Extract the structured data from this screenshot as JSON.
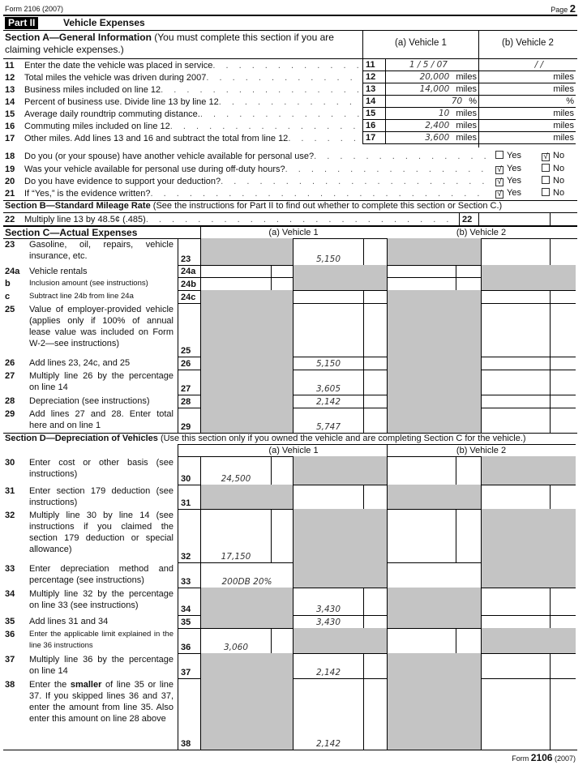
{
  "header": {
    "form_label": "Form 2106 (2007)",
    "page_label": "Page",
    "page_num": "2"
  },
  "part": {
    "badge": "Part II",
    "title": "Vehicle Expenses"
  },
  "sectionA": {
    "title_bold": "Section A—General Information",
    "title_rest": " (You must complete this section if you are claiming vehicle expenses.)",
    "col_a": "(a) Vehicle 1",
    "col_b": "(b) Vehicle 2",
    "lines": [
      {
        "num": "11",
        "text": "Enter the date the vehicle was placed in service",
        "v1": "1 /  5  / 07",
        "u1": "",
        "v2": "/        /",
        "u2": ""
      },
      {
        "num": "12",
        "text": "Total miles the vehicle was driven during 2007",
        "v1": "20,000",
        "u1": "miles",
        "v2": "",
        "u2": "miles"
      },
      {
        "num": "13",
        "text": "Business miles included on line 12",
        "v1": "14,000",
        "u1": "miles",
        "v2": "",
        "u2": "miles"
      },
      {
        "num": "14",
        "text": "Percent of business use. Divide line 13 by line 12",
        "v1": "70",
        "u1": "%",
        "v2": "",
        "u2": "%"
      },
      {
        "num": "15",
        "text": "Average daily roundtrip commuting distance.",
        "v1": "10",
        "u1": "miles",
        "v2": "",
        "u2": "miles"
      },
      {
        "num": "16",
        "text": "Commuting miles included on line 12",
        "v1": "2,400",
        "u1": "miles",
        "v2": "",
        "u2": "miles"
      },
      {
        "num": "17",
        "text": "Other miles. Add lines 13 and 16 and subtract the total from line 12",
        "v1": "3,600",
        "u1": "miles",
        "v2": "",
        "u2": "miles"
      }
    ],
    "yes_label": "Yes",
    "no_label": "No",
    "questions": [
      {
        "num": "18",
        "text": "Do you (or your spouse) have another vehicle available for personal use?",
        "yes": false,
        "no": true
      },
      {
        "num": "19",
        "text": "Was your vehicle available for personal use during off-duty hours?",
        "yes": true,
        "no": false
      },
      {
        "num": "20",
        "text": "Do you have evidence to support your deduction?",
        "yes": true,
        "no": false
      },
      {
        "num": "21",
        "text": "If “Yes,” is the evidence written?",
        "yes": true,
        "no": false
      }
    ]
  },
  "sectionB": {
    "title_bold": "Section B—Standard Mileage Rate",
    "title_rest": " (See the instructions for Part II to find out whether to complete this section or Section C.)",
    "line": {
      "num": "22",
      "text": "Multiply line 13 by 48.5¢ (.485)",
      "box": "22",
      "value": ""
    }
  },
  "sectionC": {
    "title": "Section C—Actual Expenses",
    "col_a": "(a) Vehicle 1",
    "col_b": "(b) Vehicle 2",
    "lines": [
      {
        "num": "23",
        "text": "Gasoline, oil, repairs, vehicle insurance, etc.",
        "box": "23",
        "v1": "5,150"
      },
      {
        "num": "24a",
        "text": "Vehicle rentals",
        "box": "24a",
        "v1": ""
      },
      {
        "num": "b",
        "text": "Inclusion amount (see instructions)",
        "box": "24b",
        "v1": ""
      },
      {
        "num": "c",
        "text": "Subtract line 24b from line 24a",
        "box": "24c",
        "v1": ""
      },
      {
        "num": "25",
        "text": "Value of employer-provided vehicle (applies only if 100% of annual lease value was included on Form W-2—see instructions)",
        "box": "25",
        "v1": ""
      },
      {
        "num": "26",
        "text": "Add lines 23, 24c, and 25",
        "box": "26",
        "v1": "5,150"
      },
      {
        "num": "27",
        "text": "Multiply line 26 by the percentage on line 14",
        "box": "27",
        "v1": "3,605"
      },
      {
        "num": "28",
        "text": "Depreciation (see instructions)",
        "box": "28",
        "v1": "2,142"
      },
      {
        "num": "29",
        "text": "Add lines 27 and 28. Enter total here and on line 1",
        "box": "29",
        "v1": "5,747"
      }
    ]
  },
  "sectionD": {
    "title_bold": "Section D—Depreciation of Vehicles",
    "title_rest": " (Use this section only if you owned the vehicle and are completing Section C for the vehicle.)",
    "col_a": "(a) Vehicle 1",
    "col_b": "(b) Vehicle 2",
    "lines": [
      {
        "num": "30",
        "text": "Enter cost or other basis (see instructions)",
        "box": "30",
        "v1": "24,500"
      },
      {
        "num": "31",
        "text": "Enter section 179 deduction (see instructions)",
        "box": "31",
        "v1": ""
      },
      {
        "num": "32",
        "text": "Multiply line 30 by line 14 (see instructions if you claimed the section 179 deduction or special allowance)",
        "box": "32",
        "v1": "17,150"
      },
      {
        "num": "33",
        "text": "Enter depreciation method and percentage (see instructions)",
        "box": "33",
        "v1": "200DB   20%"
      },
      {
        "num": "34",
        "text": "Multiply line 32 by the percentage on line 33 (see instructions)",
        "box": "34",
        "v1": "3,430"
      },
      {
        "num": "35",
        "text": "Add lines 31 and 34",
        "box": "35",
        "v1": "3,430"
      },
      {
        "num": "36",
        "text": "Enter the applicable limit explained in the line 36 instructions",
        "box": "36",
        "v1": "3,060"
      },
      {
        "num": "37",
        "text": "Multiply line 36 by the percentage on line 14",
        "box": "37",
        "v1": "2,142"
      },
      {
        "num": "38",
        "text_pre": "Enter the ",
        "text_bold": "smaller",
        "text": " of line 35 or line 37. If you skipped lines 36 and 37, enter the amount from line 35. Also enter this amount on line 28 above",
        "box": "38",
        "v1": "2,142"
      }
    ]
  },
  "footer": {
    "form": "Form",
    "number": "2106",
    "year": "(2007)"
  }
}
